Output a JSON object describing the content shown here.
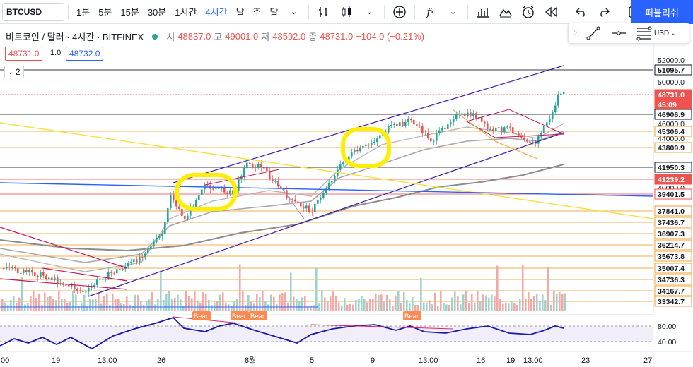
{
  "toolbar": {
    "symbol": "BTCUSD",
    "timeframes": [
      "1분",
      "5분",
      "15분",
      "30분",
      "1시간",
      "4시간",
      "날",
      "주",
      "달"
    ],
    "active_timeframe": "4시간",
    "publish_label": "퍼블리쉬"
  },
  "legend": {
    "title": "비트코인 / 달러 · 4시간 · BITFINEX",
    "open_label": "시",
    "open": "48837.0",
    "high_label": "고",
    "high": "49001.0",
    "low_label": "저",
    "low": "48592.0",
    "close_label": "종",
    "close": "48731.0",
    "change": "−104.0 (−0.21%)"
  },
  "bid_tag": "48731.0",
  "spread": "1.0",
  "ask_tag": "48732.0",
  "collapse_count": "2",
  "currency_selector": "USD",
  "price_axis": {
    "ticks": [
      "52000.0",
      "50000.0",
      "46000.0",
      "44000.0",
      "40000.0"
    ],
    "levels": [
      {
        "label": "51095.7",
        "bg": "#ffffff",
        "fg": "#131722",
        "border": "#131722"
      },
      {
        "label": "48731.0",
        "bg": "#ef5350",
        "fg": "#ffffff",
        "border": "#ef5350"
      },
      {
        "label": "45:09",
        "bg": "#ef5350",
        "fg": "#ffffff",
        "border": "#ef5350"
      },
      {
        "label": "46906.9",
        "bg": "#ffffff",
        "fg": "#131722",
        "border": "#131722"
      },
      {
        "label": "45306.4",
        "bg": "#ffffff",
        "fg": "#131722",
        "border": "#f0a030"
      },
      {
        "label": "43809.9",
        "bg": "#ffffff",
        "fg": "#131722",
        "border": "#f0a030"
      },
      {
        "label": "41950.3",
        "bg": "#ffffff",
        "fg": "#131722",
        "border": "#131722"
      },
      {
        "label": "41239.2",
        "bg": "#ef5350",
        "fg": "#ffffff",
        "border": "#ef5350"
      },
      {
        "label": "39401.5",
        "bg": "#ffffff",
        "fg": "#131722",
        "border": "#ef5350"
      },
      {
        "label": "37841.0",
        "bg": "#ffffff",
        "fg": "#131722",
        "border": "#f0a030"
      },
      {
        "label": "37436.7",
        "bg": "#ffffff",
        "fg": "#131722",
        "border": "#f0a030"
      },
      {
        "label": "36907.3",
        "bg": "#ffffff",
        "fg": "#131722",
        "border": "#f0a030"
      },
      {
        "label": "36214.7",
        "bg": "#ffffff",
        "fg": "#131722",
        "border": "#f0a030"
      },
      {
        "label": "35673.8",
        "bg": "#ffffff",
        "fg": "#131722",
        "border": "#f0a030"
      },
      {
        "label": "35007.4",
        "bg": "#ffffff",
        "fg": "#131722",
        "border": "#f0a030"
      },
      {
        "label": "34736.3",
        "bg": "#ffffff",
        "fg": "#131722",
        "border": "#f0a030"
      },
      {
        "label": "34167.7",
        "bg": "#ffffff",
        "fg": "#131722",
        "border": "#f0a030"
      },
      {
        "label": "33342.7",
        "bg": "#ffffff",
        "fg": "#131722",
        "border": "#f0a030"
      }
    ]
  },
  "rsi_axis": {
    "ticks": [
      "80.00",
      "40.00"
    ]
  },
  "bear_labels": [
    "Bear",
    "Bear",
    "Bear",
    "Bear"
  ],
  "time_axis": {
    "ticks": [
      ":00",
      "19",
      "13:00",
      "26",
      "8월",
      "5",
      "9",
      "13:00",
      "16",
      "19",
      "13:00",
      "23",
      "27"
    ]
  },
  "colors": {
    "up": "#26a69a",
    "down": "#ef5350",
    "accent": "#2962ff",
    "highlight": "#ffee00",
    "channel": "#3f1fa8",
    "fib": "#f0a030"
  }
}
